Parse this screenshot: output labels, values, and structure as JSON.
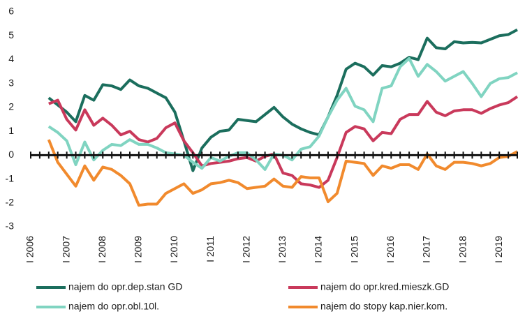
{
  "chart_data": {
    "type": "line",
    "categories": [
      "I 2006",
      null,
      null,
      null,
      "I 2007",
      null,
      null,
      null,
      "I 2008",
      null,
      null,
      null,
      "I 2009",
      null,
      null,
      null,
      "I 2010",
      null,
      null,
      null,
      "I 2011",
      null,
      null,
      null,
      "I 2012",
      null,
      null,
      null,
      "I 2013",
      null,
      null,
      null,
      "I 2014",
      null,
      null,
      null,
      "I 2015",
      null,
      null,
      null,
      "I 2016",
      null,
      null,
      null,
      "I 2017",
      null,
      null,
      null,
      "I 2018",
      null,
      null,
      null,
      "I 2019",
      null,
      null
    ],
    "series": [
      {
        "name": "najem do opr.dep.stan GD",
        "color": "#1b6e5d",
        "values": [
          null,
          null,
          2.4,
          2.1,
          1.8,
          1.4,
          2.5,
          2.3,
          2.95,
          2.9,
          2.75,
          3.15,
          2.9,
          2.8,
          2.6,
          2.4,
          1.8,
          0.6,
          -0.65,
          0.3,
          0.75,
          1.0,
          1.05,
          1.5,
          1.45,
          1.4,
          1.7,
          2.0,
          1.6,
          1.3,
          1.1,
          0.95,
          0.85,
          1.6,
          2.5,
          3.6,
          3.85,
          3.7,
          3.35,
          3.75,
          3.7,
          3.85,
          4.1,
          4.0,
          4.9,
          4.5,
          4.45,
          4.75,
          4.7,
          4.72,
          4.7,
          4.85,
          5.0,
          5.05,
          5.25
        ]
      },
      {
        "name": "najem do opr.kred.mieszk.GD",
        "color": "#c9395b",
        "values": [
          null,
          null,
          2.15,
          2.3,
          1.5,
          1.05,
          1.9,
          1.25,
          1.55,
          1.25,
          0.85,
          1.0,
          0.65,
          0.55,
          0.7,
          1.15,
          1.35,
          0.6,
          0.1,
          -0.45,
          -0.35,
          -0.3,
          -0.25,
          -0.15,
          -0.1,
          -0.25,
          -0.05,
          0.05,
          -0.75,
          -0.85,
          -1.2,
          -1.25,
          -1.35,
          -1.05,
          -0.1,
          0.95,
          1.2,
          1.1,
          0.6,
          0.95,
          0.9,
          1.5,
          1.7,
          1.7,
          2.25,
          1.8,
          1.65,
          1.85,
          1.9,
          1.9,
          1.75,
          1.95,
          2.1,
          2.2,
          2.45
        ]
      },
      {
        "name": "najem do opr.obl.10l.",
        "color": "#80d4c1",
        "values": [
          null,
          null,
          1.2,
          0.95,
          0.6,
          -0.4,
          0.55,
          -0.2,
          0.2,
          0.45,
          0.4,
          0.65,
          0.45,
          0.45,
          0.3,
          0.1,
          0.05,
          0.0,
          -0.3,
          -0.55,
          -0.1,
          -0.25,
          -0.05,
          0.1,
          0.1,
          -0.2,
          -0.6,
          0.05,
          0.0,
          -0.2,
          0.25,
          0.35,
          0.8,
          1.6,
          2.3,
          2.8,
          2.05,
          1.9,
          1.4,
          2.8,
          2.9,
          3.7,
          4.05,
          3.3,
          3.8,
          3.5,
          3.1,
          3.3,
          3.5,
          3.0,
          2.45,
          3.0,
          3.2,
          3.25,
          3.45
        ]
      },
      {
        "name": "najem do stopy kap.nier.kom.",
        "color": "#f18a2d",
        "values": [
          null,
          null,
          0.65,
          -0.3,
          -0.8,
          -1.3,
          -0.45,
          -1.05,
          -0.5,
          -0.6,
          -0.85,
          -1.2,
          -2.1,
          -2.05,
          -2.05,
          -1.6,
          -1.4,
          -1.2,
          -1.6,
          -1.45,
          -1.2,
          -1.15,
          -1.05,
          -1.15,
          -1.4,
          -1.35,
          -1.3,
          -1.0,
          -1.3,
          -1.35,
          -0.9,
          -0.95,
          -0.95,
          -1.95,
          -1.6,
          -0.25,
          -0.3,
          -0.35,
          -0.85,
          -0.45,
          -0.55,
          -0.4,
          -0.4,
          -0.6,
          0.05,
          -0.45,
          -0.6,
          -0.3,
          -0.3,
          -0.35,
          -0.45,
          -0.35,
          -0.1,
          -0.05,
          0.15
        ]
      }
    ],
    "ylim": [
      -3,
      6
    ],
    "yticks": [
      -3,
      -2,
      -1,
      0,
      1,
      2,
      3,
      4,
      5,
      6
    ],
    "grid": false
  }
}
